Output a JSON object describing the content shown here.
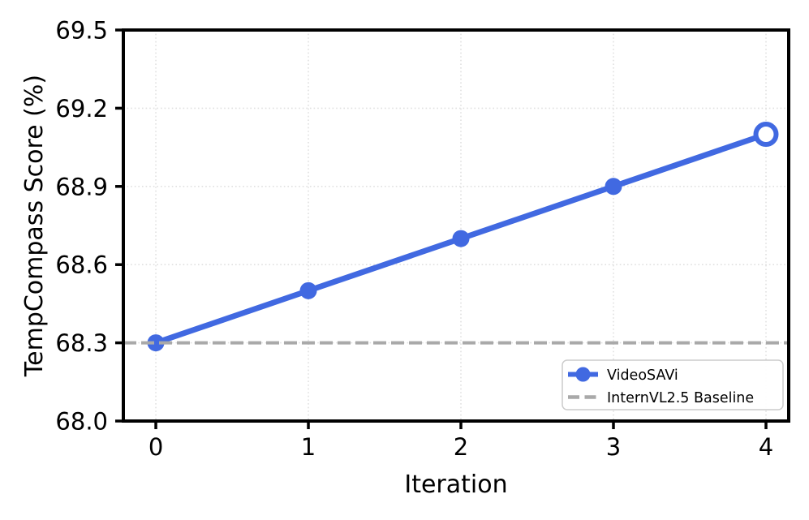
{
  "chart_data": {
    "type": "line",
    "title": "",
    "xlabel": "Iteration",
    "ylabel": "TempCompass Score (%)",
    "x": [
      0,
      1,
      2,
      3,
      4
    ],
    "series": [
      {
        "name": "VideoSAVi",
        "values": [
          68.3,
          68.5,
          68.7,
          68.9,
          69.1
        ],
        "color": "#4169E1",
        "line_style": "solid",
        "line_width": 7,
        "markers": [
          "filled",
          "filled",
          "filled",
          "filled",
          "open"
        ],
        "full_width": false
      },
      {
        "name": "InternVL2.5 Baseline",
        "values": [
          68.3,
          68.3,
          68.3,
          68.3,
          68.3
        ],
        "color": "#A9A9A9",
        "line_style": "dashed",
        "line_width": 4,
        "markers": [],
        "full_width": true
      }
    ],
    "xticks": [
      "0",
      "1",
      "2",
      "3",
      "4"
    ],
    "xtick_values": [
      0,
      1,
      2,
      3,
      4
    ],
    "yticks": [
      "68.0",
      "68.3",
      "68.6",
      "68.9",
      "69.2",
      "69.5"
    ],
    "ytick_values": [
      68.0,
      68.3,
      68.6,
      68.9,
      69.2,
      69.5
    ],
    "xlim": [
      -0.213,
      4.149
    ],
    "ylim": [
      68.0,
      69.5
    ],
    "grid": true,
    "grid_color": "#e0e0e0",
    "axis_color": "#000000",
    "legend": {
      "position": "lower right",
      "border_color": "#cccccc",
      "items": [
        "VideoSAVi",
        "InternVL2.5 Baseline"
      ]
    }
  }
}
